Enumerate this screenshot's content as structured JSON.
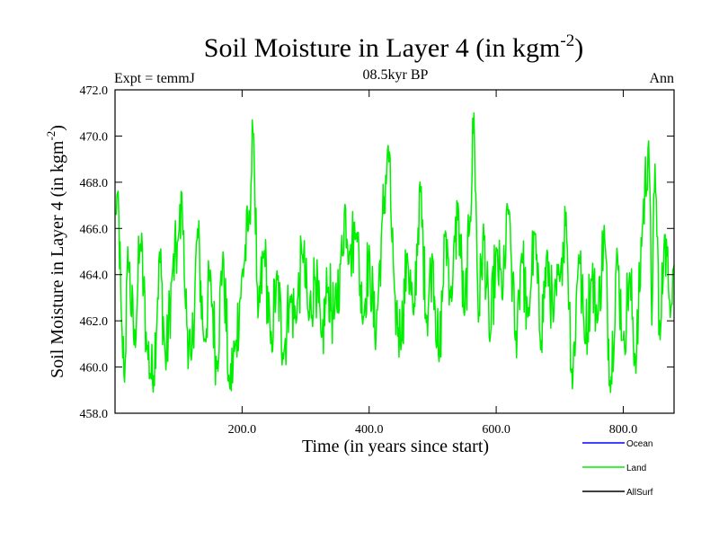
{
  "chart_data": {
    "type": "line",
    "title": "Soil Moisture in Layer 4 (in kgm",
    "title_sup": "-2",
    "title_close": ")",
    "subtitle": "08.5kyr BP",
    "expt_label": "Expt = temmJ",
    "season_label": "Ann",
    "xlabel": "Time (in years since start)",
    "ylabel": "Soil Moisture in Layer 4 (in kgm",
    "ylabel_sup": "-2",
    "ylabel_close": ")",
    "xlim": [
      0,
      880
    ],
    "ylim": [
      458.0,
      472.0
    ],
    "x_ticks": [
      200,
      400,
      600,
      800
    ],
    "x_tick_labels": [
      "200.0",
      "400.0",
      "600.0",
      "800.0"
    ],
    "y_ticks": [
      458,
      460,
      462,
      464,
      466,
      468,
      470,
      472
    ],
    "y_tick_labels": [
      "458.0",
      "460.0",
      "462.0",
      "464.0",
      "466.0",
      "468.0",
      "470.0",
      "472.0"
    ],
    "legend": [
      {
        "name": "Ocean",
        "color": "#0000ff"
      },
      {
        "name": "Land",
        "color": "#00ee00"
      },
      {
        "name": "AllSurf",
        "color": "#000000"
      }
    ],
    "series": [
      {
        "name": "Land",
        "color": "#00ee00",
        "x_start": 1,
        "x_step": 1,
        "anchors": [
          [
            1,
            466.5
          ],
          [
            5,
            467.5
          ],
          [
            10,
            462.0
          ],
          [
            15,
            459.3
          ],
          [
            20,
            465.0
          ],
          [
            30,
            461.0
          ],
          [
            40,
            465.5
          ],
          [
            50,
            461.0
          ],
          [
            60,
            459.2
          ],
          [
            70,
            465.0
          ],
          [
            80,
            460.0
          ],
          [
            90,
            464.0
          ],
          [
            100,
            465.5
          ],
          [
            105,
            467.8
          ],
          [
            110,
            463.0
          ],
          [
            120,
            460.0
          ],
          [
            130,
            466.0
          ],
          [
            140,
            461.0
          ],
          [
            150,
            464.0
          ],
          [
            160,
            460.0
          ],
          [
            170,
            465.0
          ],
          [
            180,
            459.0
          ],
          [
            190,
            461.0
          ],
          [
            200,
            464.0
          ],
          [
            210,
            466.0
          ],
          [
            218,
            470.4
          ],
          [
            225,
            462.0
          ],
          [
            235,
            465.0
          ],
          [
            245,
            461.0
          ],
          [
            255,
            464.0
          ],
          [
            265,
            460.5
          ],
          [
            275,
            463.0
          ],
          [
            285,
            462.0
          ],
          [
            295,
            465.0
          ],
          [
            305,
            462.0
          ],
          [
            315,
            464.0
          ],
          [
            325,
            461.0
          ],
          [
            335,
            463.5
          ],
          [
            345,
            462.0
          ],
          [
            355,
            464.5
          ],
          [
            362,
            467.0
          ],
          [
            370,
            465.0
          ],
          [
            380,
            466.0
          ],
          [
            390,
            462.0
          ],
          [
            400,
            465.0
          ],
          [
            410,
            461.0
          ],
          [
            420,
            466.0
          ],
          [
            430,
            469.6
          ],
          [
            440,
            463.0
          ],
          [
            450,
            461.0
          ],
          [
            460,
            465.0
          ],
          [
            470,
            462.0
          ],
          [
            480,
            468.0
          ],
          [
            490,
            462.0
          ],
          [
            500,
            465.0
          ],
          [
            510,
            460.0
          ],
          [
            520,
            466.0
          ],
          [
            530,
            463.0
          ],
          [
            540,
            467.0
          ],
          [
            550,
            462.0
          ],
          [
            558,
            466.0
          ],
          [
            565,
            470.9
          ],
          [
            572,
            462.0
          ],
          [
            580,
            466.0
          ],
          [
            590,
            461.0
          ],
          [
            600,
            465.0
          ],
          [
            610,
            463.0
          ],
          [
            620,
            467.0
          ],
          [
            630,
            461.0
          ],
          [
            640,
            465.0
          ],
          [
            650,
            462.0
          ],
          [
            660,
            466.0
          ],
          [
            670,
            461.0
          ],
          [
            680,
            465.0
          ],
          [
            690,
            462.0
          ],
          [
            700,
            464.0
          ],
          [
            710,
            466.5
          ],
          [
            720,
            459.2
          ],
          [
            730,
            465.0
          ],
          [
            740,
            461.0
          ],
          [
            750,
            464.0
          ],
          [
            760,
            462.0
          ],
          [
            770,
            466.0
          ],
          [
            780,
            459.0
          ],
          [
            790,
            465.0
          ],
          [
            800,
            461.0
          ],
          [
            810,
            464.0
          ],
          [
            820,
            460.0
          ],
          [
            830,
            466.0
          ],
          [
            840,
            469.9
          ],
          [
            845,
            462.0
          ],
          [
            850,
            468.7
          ],
          [
            858,
            461.0
          ],
          [
            865,
            466.0
          ],
          [
            872,
            463.0
          ],
          [
            880,
            464.5
          ]
        ],
        "noise_amplitude": 1.6
      }
    ]
  }
}
